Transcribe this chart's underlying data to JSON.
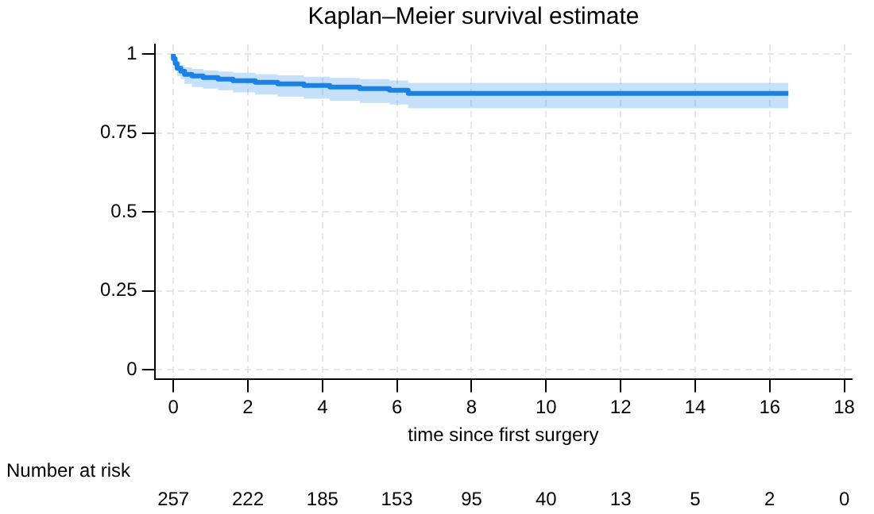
{
  "chart_data": {
    "type": "step",
    "title": "Kaplan–Meier survival estimate",
    "xlabel": "time since first surgery",
    "xlim": [
      -0.5,
      18.2
    ],
    "xticks": [
      0,
      2,
      4,
      6,
      8,
      10,
      12,
      14,
      16,
      18
    ],
    "ylim": [
      -0.03,
      1.03
    ],
    "yticks": [
      0,
      0.25,
      0.5,
      0.75,
      1
    ],
    "grid": true,
    "legend": false,
    "marker": "none",
    "line_style": "solid",
    "series": [
      {
        "color": "#1a82e6",
        "x": [
          0,
          0.05,
          0.1,
          0.2,
          0.3,
          0.5,
          0.8,
          1.2,
          1.6,
          2.2,
          2.8,
          3.5,
          4.2,
          5,
          5.8,
          6.3,
          7.3,
          16.5
        ],
        "values": [
          1,
          0.985,
          0.97,
          0.955,
          0.945,
          0.935,
          0.93,
          0.925,
          0.92,
          0.915,
          0.91,
          0.905,
          0.9,
          0.895,
          0.89,
          0.885,
          0.875,
          0.875
        ],
        "lower": [
          1,
          0.97,
          0.95,
          0.93,
          0.92,
          0.905,
          0.895,
          0.89,
          0.885,
          0.878,
          0.872,
          0.865,
          0.858,
          0.852,
          0.845,
          0.84,
          0.828,
          0.828
        ],
        "upper": [
          1,
          0.995,
          0.99,
          0.975,
          0.965,
          0.957,
          0.952,
          0.948,
          0.944,
          0.94,
          0.936,
          0.932,
          0.928,
          0.924,
          0.92,
          0.916,
          0.908,
          0.908
        ]
      }
    ],
    "annotations": [
      "Number at risk",
      "257",
      "222",
      "185",
      "153",
      "95",
      "40",
      "13",
      "5",
      "2",
      "0"
    ]
  }
}
